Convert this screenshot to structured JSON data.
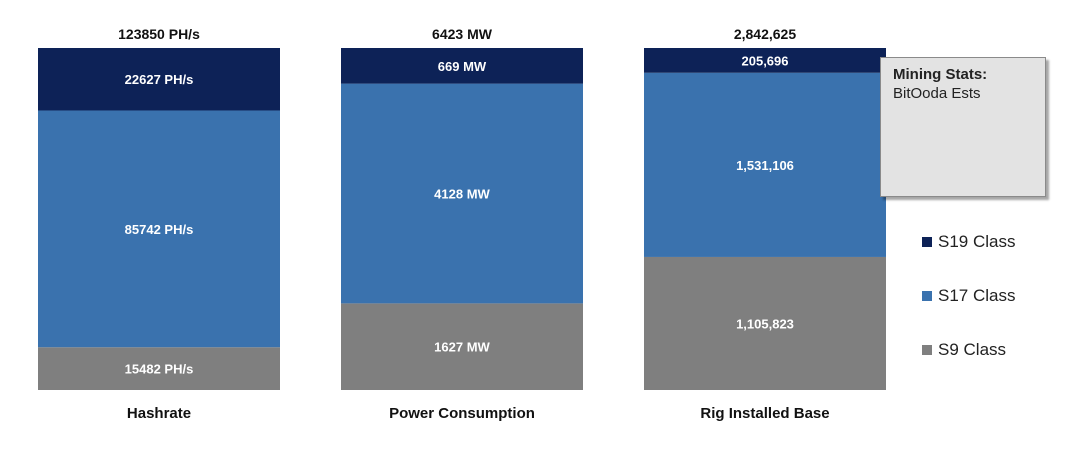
{
  "chart_data": {
    "type": "bar",
    "stacked": "100%",
    "categories": [
      "Hashrate",
      "Power Consumption",
      "Rig Installed Base"
    ],
    "totals": [
      "123850 PH/s",
      "6423 MW",
      "2,842,625"
    ],
    "series": [
      {
        "name": "S9 Class",
        "color": "#7f7f7f",
        "values": [
          15482,
          1627,
          1105823
        ],
        "labels": [
          "15482 PH/s",
          "1627 MW",
          "1,105,823"
        ]
      },
      {
        "name": "S17 Class",
        "color": "#3a72ae",
        "values": [
          85742,
          4128,
          1531106
        ],
        "labels": [
          "85742 PH/s",
          "4128 MW",
          "1,531,106"
        ]
      },
      {
        "name": "S19 Class",
        "color": "#0d2257",
        "values": [
          22627,
          669,
          205696
        ],
        "labels": [
          "22627 PH/s",
          "669 MW",
          "205,696"
        ]
      }
    ],
    "legend_placement": "right",
    "grid": false
  },
  "callout": {
    "title": "Mining Stats:",
    "subtitle": "BitOoda Ests"
  }
}
